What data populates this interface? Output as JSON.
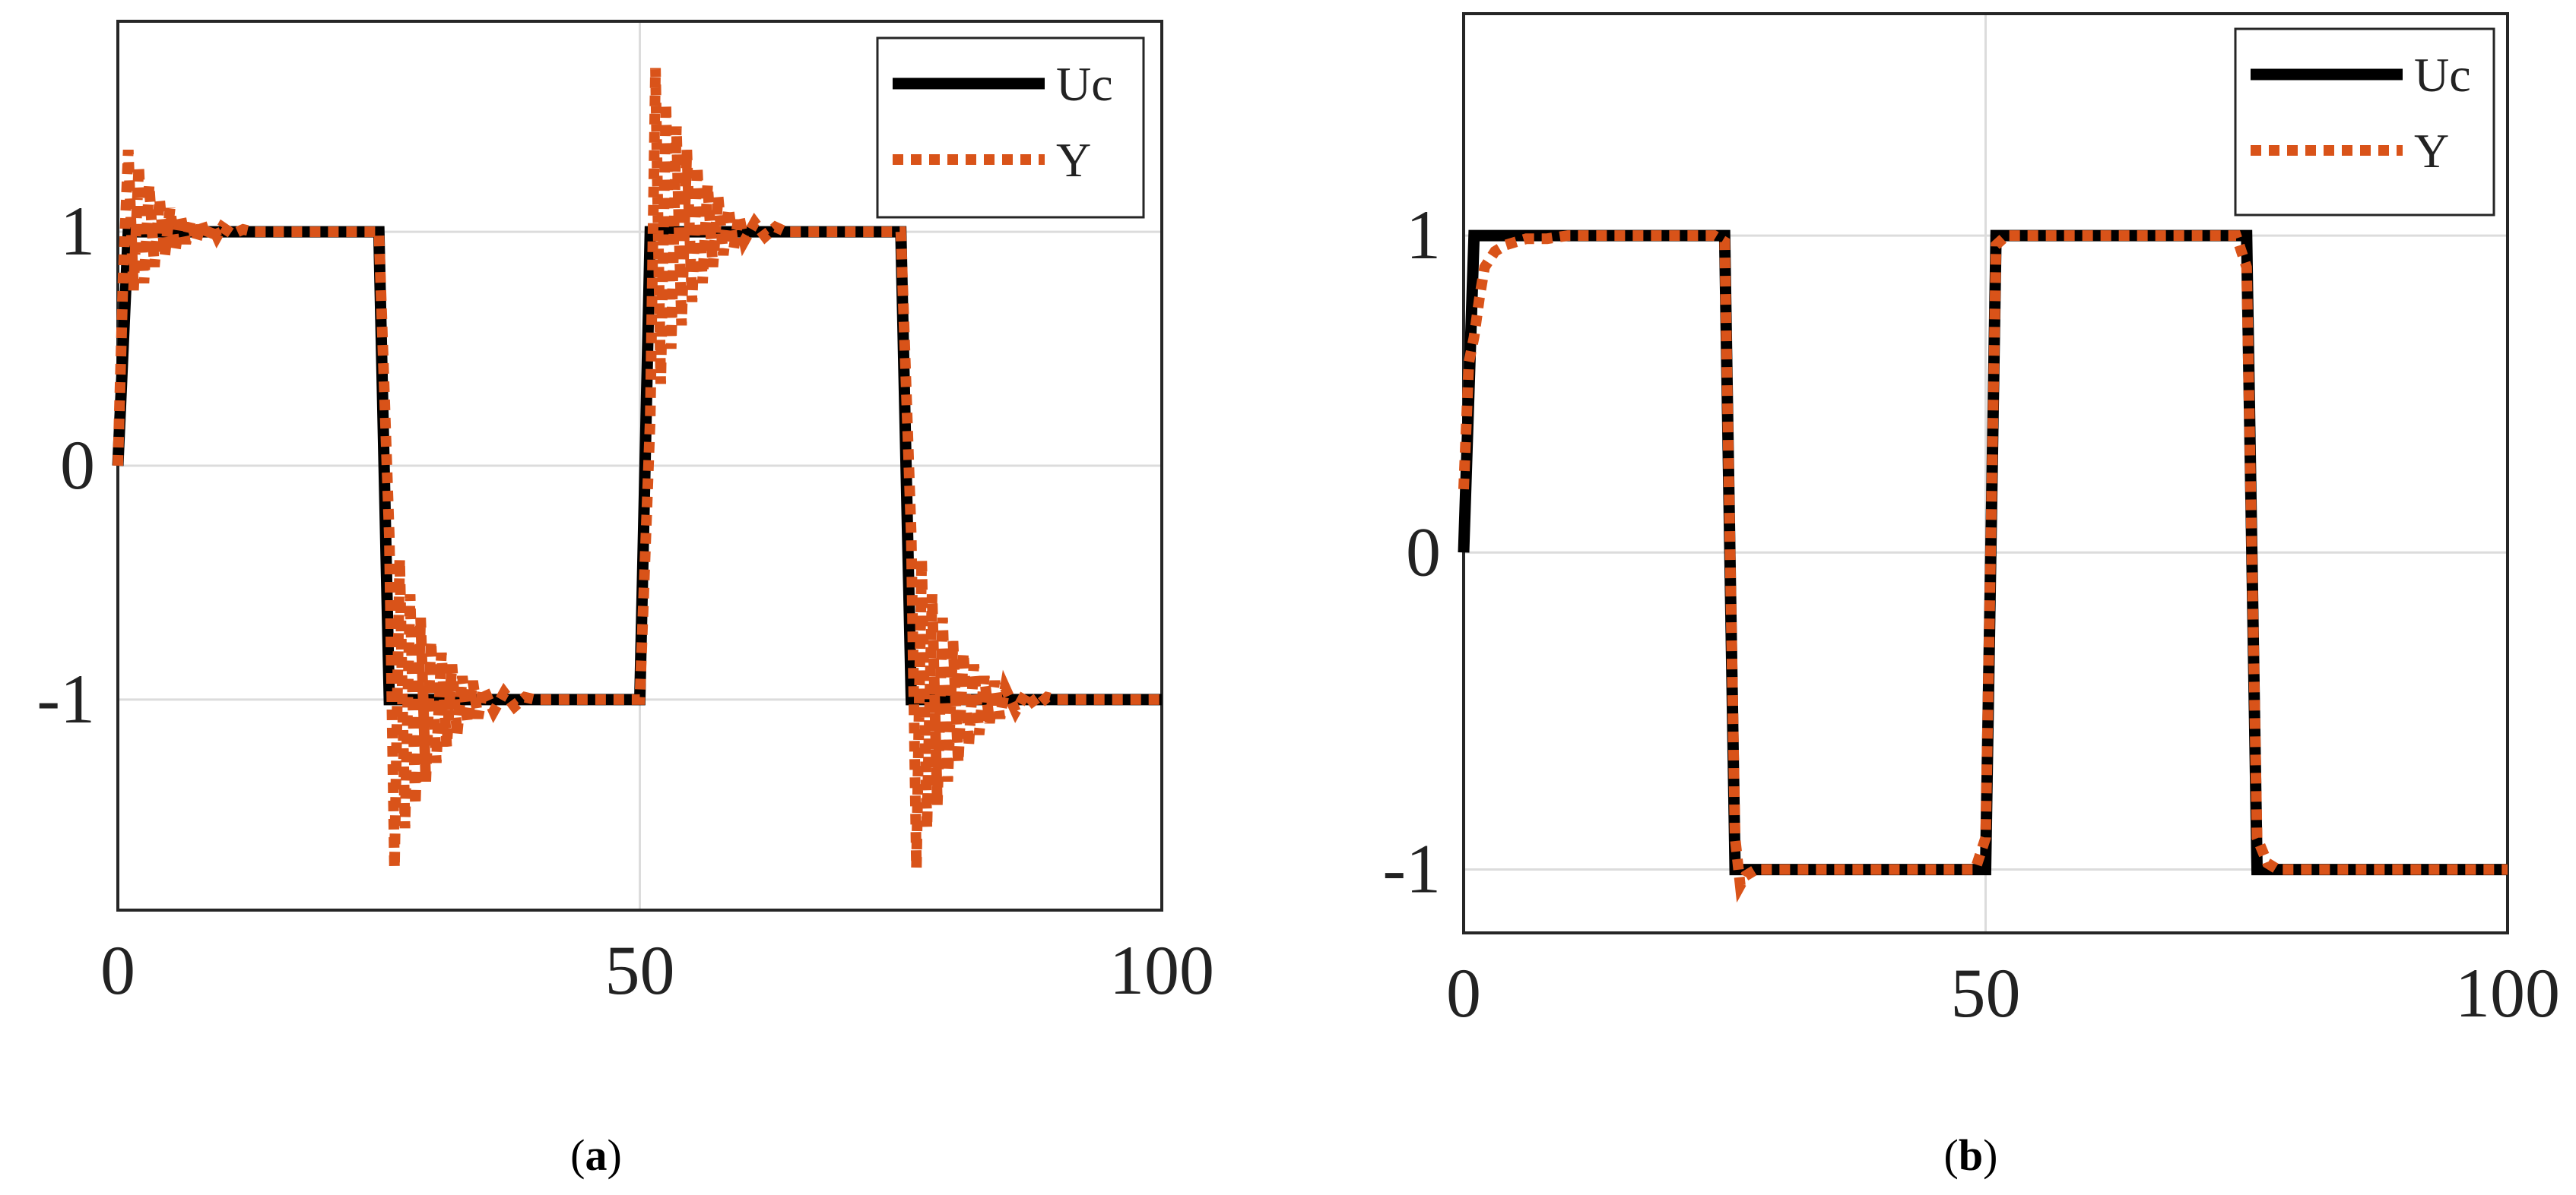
{
  "colors": {
    "uc_line": "#000000",
    "y_line": "#d95319",
    "grid": "#dcdcdc",
    "axes": "#262626"
  },
  "chart_data": [
    {
      "type": "line",
      "panel_label": "a",
      "xlim": [
        0,
        100
      ],
      "ylim": [
        -1.9,
        1.9
      ],
      "x_ticks": [
        "0",
        "50",
        "100"
      ],
      "y_ticks": [
        "-1",
        "0",
        "1"
      ],
      "x_tick_values": [
        0,
        50,
        100
      ],
      "y_tick_values": [
        -1,
        0,
        1
      ],
      "grid": true,
      "legend_position": "top-right",
      "series": [
        {
          "name": "Uc",
          "style": "solid",
          "x": [
            0,
            1,
            25,
            26,
            50,
            51,
            75,
            76,
            100
          ],
          "y": [
            0,
            1,
            1,
            -1,
            -1,
            1,
            1,
            -1,
            -1
          ]
        },
        {
          "name": "Y",
          "style": "dotted",
          "x": [
            0,
            0.5,
            1,
            1.5,
            2,
            2.5,
            3,
            3.5,
            4,
            4.5,
            5,
            5.5,
            6,
            6.5,
            7,
            7.5,
            8,
            8.5,
            9,
            9.5,
            10,
            11,
            12,
            13,
            14,
            15,
            16,
            18,
            20,
            25,
            26,
            26.5,
            27,
            27.5,
            28,
            28.5,
            29,
            29.5,
            30,
            30.5,
            31,
            31.5,
            32,
            32.5,
            33,
            33.5,
            34,
            34.5,
            35,
            36,
            37,
            38,
            39,
            40,
            42,
            45,
            50,
            51,
            51.5,
            52,
            52.5,
            53,
            53.5,
            54,
            54.5,
            55,
            55.5,
            56,
            56.5,
            57,
            57.5,
            58,
            58.5,
            59,
            59.5,
            60,
            61,
            62,
            63,
            64,
            65,
            67,
            70,
            75,
            76,
            76.5,
            77,
            77.5,
            78,
            78.5,
            79,
            79.5,
            80,
            80.5,
            81,
            81.5,
            82,
            82.5,
            83,
            83.5,
            84,
            84.5,
            85,
            86,
            87,
            88,
            89,
            90,
            92,
            95,
            100
          ],
          "y": [
            0,
            0.8,
            1.35,
            0.75,
            1.28,
            0.78,
            1.2,
            0.85,
            1.14,
            0.9,
            1.1,
            0.92,
            1.07,
            0.95,
            1.05,
            0.96,
            1.04,
            0.97,
            1.03,
            0.98,
            1.02,
            0.99,
            1.01,
            1.0,
            1.0,
            1.0,
            1.0,
            1.0,
            1.0,
            1.0,
            -0.3,
            -1.72,
            -0.4,
            -1.55,
            -0.55,
            -1.45,
            -0.65,
            -1.35,
            -0.75,
            -1.27,
            -0.8,
            -1.2,
            -0.85,
            -1.15,
            -0.9,
            -1.1,
            -0.92,
            -1.08,
            -0.95,
            -1.05,
            -0.97,
            -1.03,
            -0.99,
            -1.0,
            -1.0,
            -1.0,
            -1.0,
            0.2,
            1.7,
            0.35,
            1.55,
            0.5,
            1.45,
            0.6,
            1.35,
            0.7,
            1.28,
            0.78,
            1.2,
            0.85,
            1.15,
            0.9,
            1.1,
            0.93,
            1.07,
            0.96,
            1.04,
            0.98,
            1.02,
            1.0,
            1.0,
            1.0,
            1.0,
            1.0,
            -0.3,
            -1.72,
            -0.4,
            -1.55,
            -0.55,
            -1.45,
            -0.65,
            -1.35,
            -0.75,
            -1.27,
            -0.8,
            -1.2,
            -0.85,
            -1.15,
            -0.9,
            -1.1,
            -0.92,
            -1.08,
            -0.95,
            -1.05,
            -0.97,
            -1.03,
            -0.99,
            -1.0,
            -1.0,
            -1.0,
            -1.0
          ]
        }
      ]
    },
    {
      "type": "line",
      "panel_label": "b",
      "xlim": [
        0,
        100
      ],
      "ylim": [
        -1.2,
        1.7
      ],
      "x_ticks": [
        "0",
        "50",
        "100"
      ],
      "y_ticks": [
        "-1",
        "0",
        "1"
      ],
      "x_tick_values": [
        0,
        50,
        100
      ],
      "y_tick_values": [
        -1,
        0,
        1
      ],
      "grid": true,
      "legend_position": "top-right",
      "series": [
        {
          "name": "Uc",
          "style": "solid",
          "x": [
            0,
            1,
            25,
            26,
            50,
            51,
            75,
            76,
            100
          ],
          "y": [
            0,
            1,
            1,
            -1,
            -1,
            1,
            1,
            -1,
            -1
          ]
        },
        {
          "name": "Y",
          "style": "dotted",
          "x": [
            0,
            0.5,
            1,
            1.5,
            2,
            3,
            4,
            5,
            6,
            8,
            10,
            15,
            20,
            24,
            25,
            26,
            26.5,
            27,
            28,
            30,
            35,
            40,
            45,
            49,
            50,
            51,
            52,
            55,
            60,
            65,
            70,
            74,
            75,
            76,
            77,
            78,
            80,
            85,
            90,
            95,
            100
          ],
          "y": [
            0.2,
            0.6,
            0.68,
            0.8,
            0.9,
            0.95,
            0.97,
            0.98,
            0.99,
            0.99,
            1.0,
            1.0,
            1.0,
            1.0,
            0.98,
            -0.9,
            -1.05,
            -1.02,
            -1.0,
            -1.0,
            -1.0,
            -1.0,
            -1.0,
            -1.0,
            -0.9,
            0.97,
            1.0,
            1.0,
            1.0,
            1.0,
            1.0,
            1.0,
            0.9,
            -0.9,
            -0.98,
            -1.0,
            -1.0,
            -1.0,
            -1.0,
            -1.0,
            -1.0
          ]
        }
      ]
    }
  ]
}
